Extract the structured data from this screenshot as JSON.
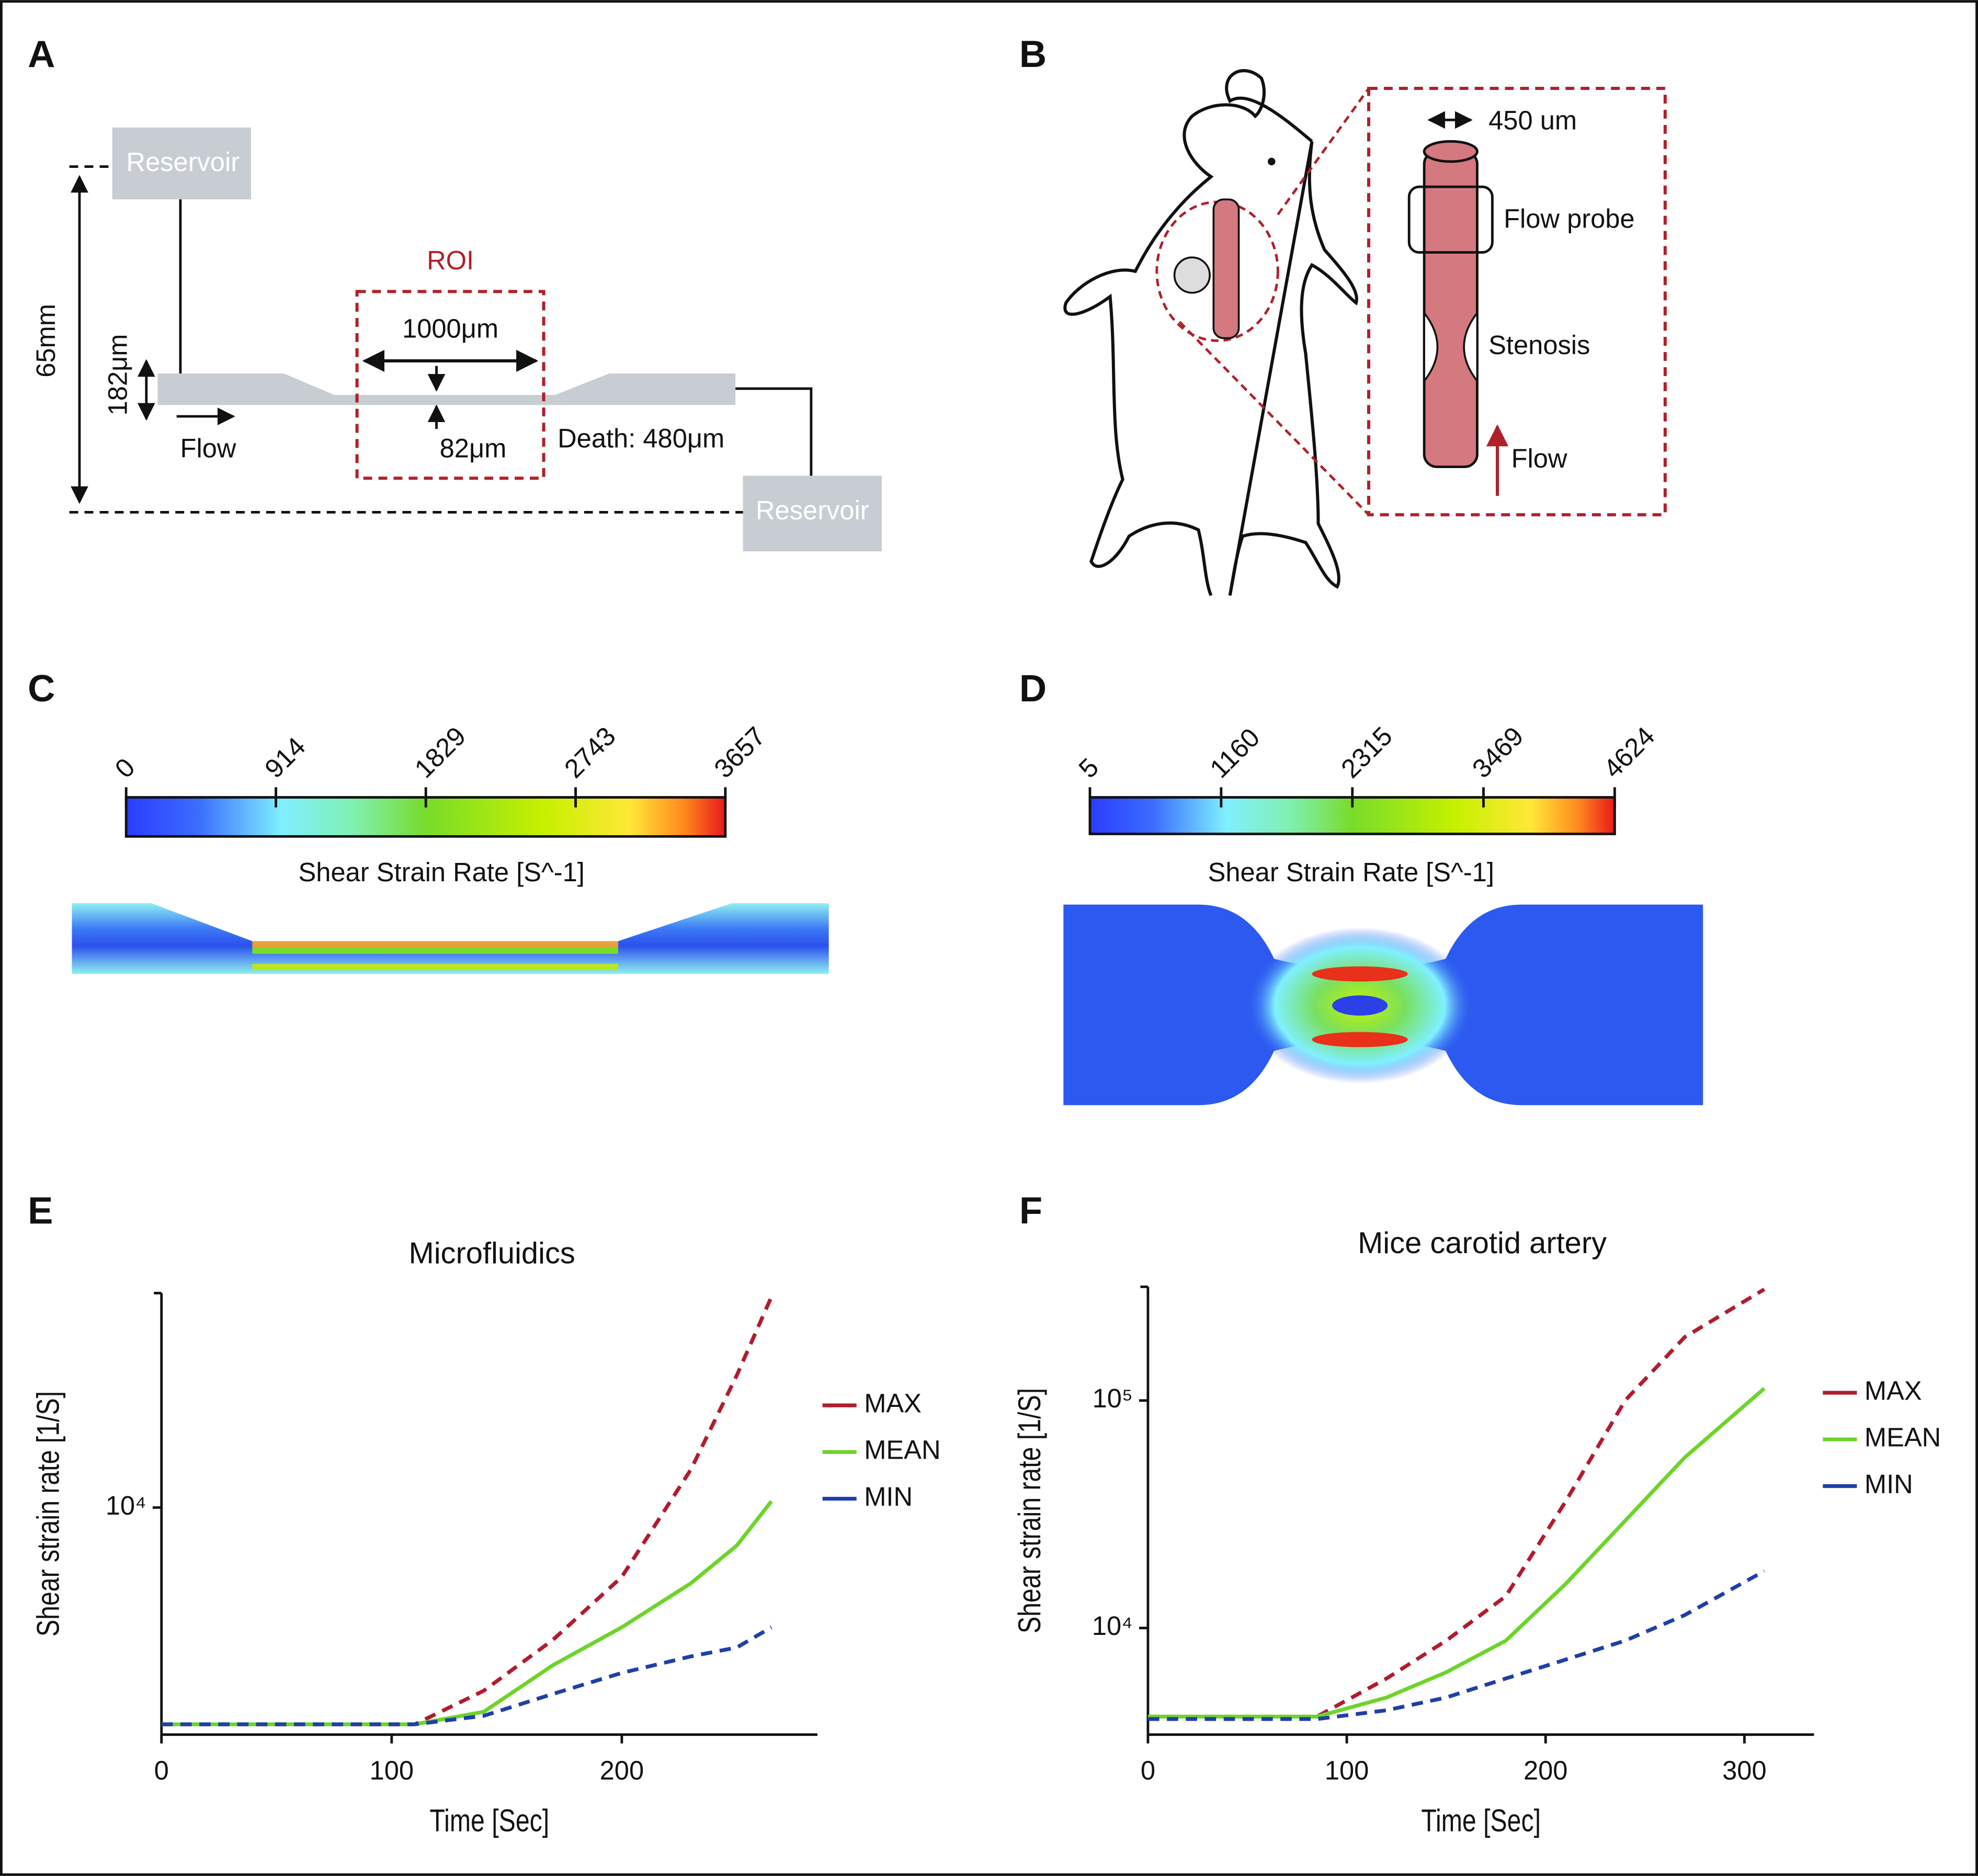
{
  "panels": {
    "a": {
      "label": "A",
      "reservoir_top": "Reservoir",
      "reservoir_bottom": "Reservoir",
      "height": "65mm",
      "channel_height": "182μm",
      "flow": "Flow",
      "roi": "ROI",
      "roi_width": "1000μm",
      "gap": "82μm",
      "depth": "Death: 480μm"
    },
    "b": {
      "label": "B",
      "diameter": "450 um",
      "probe": "Flow probe",
      "stenosis": "Stenosis",
      "flow": "Flow"
    },
    "c": {
      "label": "C",
      "colorbar": {
        "lim": [
          0,
          3657
        ],
        "ticks": [
          0,
          914,
          1829,
          2743,
          3657
        ],
        "label": "Shear Strain Rate [S^-1]"
      }
    },
    "d": {
      "label": "D",
      "colorbar": {
        "lim": [
          5,
          4624
        ],
        "ticks": [
          5,
          1160,
          2315,
          3469,
          4624
        ],
        "label": "Shear Strain Rate [S^-1]"
      }
    }
  },
  "chart_data": [
    {
      "type": "line",
      "label": "E",
      "title": "Microfluidics",
      "x_label": "Time [Sec]",
      "y_label": "Shear strain rate [1/S]",
      "x": [
        0,
        110,
        140,
        170,
        200,
        230,
        250,
        265
      ],
      "series": [
        {
          "name": "MAX",
          "color": "#b01c2e",
          "dashed": true,
          "values": [
            1110,
            1110,
            1560,
            2610,
            4950,
            14700,
            38300,
            84700
          ]
        },
        {
          "name": "MEAN",
          "color": "#6dd42a",
          "dashed": false,
          "values": [
            1110,
            1110,
            1260,
            2020,
            2970,
            4640,
            6810,
            10660
          ]
        },
        {
          "name": "MIN",
          "color": "#1f3fa8",
          "dashed": true,
          "values": [
            1110,
            1110,
            1210,
            1510,
            1870,
            2210,
            2420,
            2970
          ]
        }
      ],
      "xlim": [
        0,
        285
      ],
      "xticks": [
        0,
        100,
        200
      ],
      "ylim": [
        1000,
        88000
      ],
      "yticks": [
        {
          "value": 10000,
          "label": "10⁴"
        }
      ],
      "log_y": true
    },
    {
      "type": "line",
      "label": "F",
      "title": "Mice carotid artery",
      "x_label": "Time [Sec]",
      "y_label": "Shear strain rate [1/S]",
      "x": [
        0,
        85,
        120,
        150,
        180,
        210,
        240,
        270,
        310
      ],
      "series": [
        {
          "name": "MAX",
          "color": "#b01c2e",
          "dashed": true,
          "values": [
            4080,
            4080,
            6000,
            8800,
            13800,
            35900,
            100000,
            190000,
            308000
          ]
        },
        {
          "name": "MEAN",
          "color": "#6dd42a",
          "dashed": false,
          "values": [
            4080,
            4080,
            4950,
            6390,
            8800,
            15600,
            29600,
            56200,
            113000
          ]
        },
        {
          "name": "MIN",
          "color": "#1f3fa8",
          "dashed": true,
          "values": [
            3980,
            3980,
            4350,
            4950,
            6000,
            7260,
            8800,
            11400,
            17800
          ]
        }
      ],
      "xlim": [
        0,
        335
      ],
      "xticks": [
        0,
        100,
        200,
        300
      ],
      "ylim": [
        3400,
        316000
      ],
      "yticks": [
        {
          "value": 10000,
          "label": "10⁴"
        },
        {
          "value": 100000,
          "label": "10⁵"
        }
      ],
      "log_y": true
    }
  ]
}
